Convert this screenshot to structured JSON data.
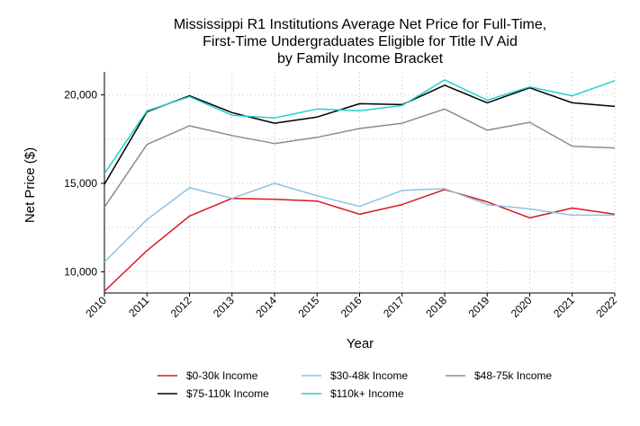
{
  "chart_data": {
    "type": "line",
    "title_lines": [
      "Mississippi R1 Institutions Average Net Price for Full-Time,",
      "First-Time Undergraduates Eligible for Title IV Aid",
      "by Family Income Bracket"
    ],
    "xlabel": "Year",
    "ylabel": "Net Price ($)",
    "x": [
      "2010",
      "2011",
      "2012",
      "2013",
      "2014",
      "2015",
      "2016",
      "2017",
      "2018",
      "2019",
      "2020",
      "2021",
      "2022"
    ],
    "xlim": [
      2010,
      2022
    ],
    "ylim": [
      8800,
      21300
    ],
    "yticks": [
      10000,
      15000,
      20000
    ],
    "ytick_labels": [
      "10,000",
      "15,000",
      "20,000"
    ],
    "grid": true,
    "legend_position": "bottom",
    "series": [
      {
        "name": "$0-30k Income",
        "color": "#d7191c",
        "values": [
          8900,
          11200,
          13150,
          14150,
          14100,
          14000,
          13250,
          13800,
          14650,
          13950,
          13050,
          13600,
          13250
        ]
      },
      {
        "name": "$30-48k Income",
        "color": "#8fc1e3",
        "values": [
          10550,
          12950,
          14750,
          14150,
          15000,
          14300,
          13700,
          14600,
          14700,
          13800,
          13550,
          13200,
          13200
        ]
      },
      {
        "name": "$48-75k Income",
        "color": "#8c8c8c",
        "values": [
          13650,
          17200,
          18250,
          17700,
          17250,
          17600,
          18100,
          18400,
          19200,
          18000,
          18450,
          17100,
          17000
        ]
      },
      {
        "name": "$75-110k Income",
        "color": "#000000",
        "values": [
          14950,
          19050,
          19950,
          19000,
          18400,
          18750,
          19500,
          19450,
          20550,
          19550,
          20400,
          19550,
          19350
        ]
      },
      {
        "name": "$110k+ Income",
        "color": "#20d0d0",
        "values": [
          15550,
          19100,
          19900,
          18850,
          18700,
          19200,
          19100,
          19400,
          20850,
          19700,
          20450,
          19950,
          20800
        ]
      }
    ]
  }
}
